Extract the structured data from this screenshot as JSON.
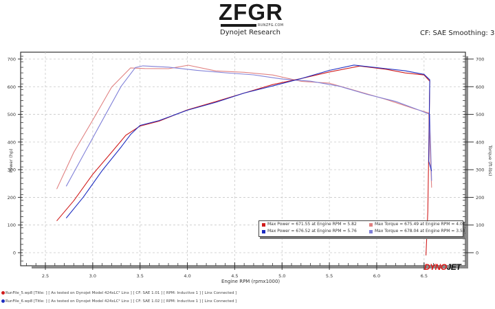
{
  "header": {
    "logo_text": "ZFGR",
    "logo_subtext": "RUNZFG.COM",
    "subtitle": "Dynojet Research",
    "cf_smoothing": "CF: SAE Smoothing: 3"
  },
  "branding": {
    "dynojet_red": "DYNO",
    "dynojet_black": "JET"
  },
  "legend": {
    "rows": [
      [
        {
          "color": "#d01c1c",
          "text": "Max Power = 671.55 at Engine RPM = 5.82"
        },
        {
          "color": "#e08080",
          "text": "Max Torque = 675.49 at Engine RPM = 4.01"
        }
      ],
      [
        {
          "color": "#1c2cc0",
          "text": "Max Power = 676.52 at Engine RPM = 5.76"
        },
        {
          "color": "#8080d8",
          "text": "Max Torque = 678.04 at Engine RPM = 3.53"
        }
      ]
    ]
  },
  "footer": {
    "runs": [
      {
        "color": "#d01c1c",
        "text": "RunFile_5.wp8 [Title: ]   [ As tested on Dynojet Model 424xLC² Linx ] [ CF: SAE 1.01 ] [ RPM: Inductive 1 ] [ Linx Connected ]"
      },
      {
        "color": "#1c2cc0",
        "text": "RunFile_6.wp8 [Title: ]   [ As tested on Dynojet Model 424xLC² Linx ] [ CF: SAE 1.02 ] [ RPM: Inductive 1 ] [ Linx Connected ]"
      }
    ]
  },
  "chart_data": {
    "type": "line",
    "title": "Dynojet Research",
    "subtitle": "CF: SAE Smoothing: 3",
    "xlabel": "Engine RPM (rpmx1000)",
    "ylabel": "Power (hp)",
    "ylabel_right": "Torque (ft-lbs)",
    "xlim": [
      2.3,
      6.6
    ],
    "ylim": [
      -50,
      730
    ],
    "x_ticks": [
      "2.5",
      "3.0",
      "3.5",
      "4.0",
      "4.5",
      "5.0",
      "5.5",
      "6.0",
      "6.5"
    ],
    "y_ticks": [
      "0",
      "100",
      "200",
      "300",
      "400",
      "500",
      "600",
      "700"
    ],
    "y_ticks_right": [
      "0",
      "100",
      "200",
      "300",
      "400",
      "500",
      "600",
      "700"
    ],
    "grid": true,
    "legend_position": "lower right inside plot",
    "series": [
      {
        "name": "Power - RunFile_5",
        "color": "#d01c1c",
        "x": [
          2.62,
          2.8,
          3.0,
          3.2,
          3.35,
          3.5,
          3.7,
          4.0,
          4.3,
          4.6,
          4.9,
          5.2,
          5.5,
          5.82,
          6.1,
          6.3,
          6.5,
          6.56,
          6.54,
          6.52
        ],
        "y": [
          115,
          190,
          280,
          365,
          425,
          455,
          478,
          515,
          545,
          580,
          605,
          630,
          655,
          671.55,
          665,
          650,
          640,
          620,
          150,
          -10
        ]
      },
      {
        "name": "Power - RunFile_6",
        "color": "#1c2cc0",
        "x": [
          2.72,
          2.9,
          3.1,
          3.3,
          3.4,
          3.5,
          3.7,
          4.0,
          4.3,
          4.6,
          4.9,
          5.2,
          5.5,
          5.76,
          6.1,
          6.3,
          6.5,
          6.56,
          6.55,
          6.58
        ],
        "y": [
          125,
          200,
          295,
          385,
          425,
          460,
          480,
          512,
          545,
          578,
          600,
          632,
          658,
          676.52,
          668,
          655,
          645,
          625,
          330,
          295
        ]
      },
      {
        "name": "Torque - RunFile_5",
        "color": "#e08080",
        "x": [
          2.62,
          2.8,
          3.0,
          3.2,
          3.4,
          3.55,
          3.8,
          4.01,
          4.3,
          4.6,
          4.9,
          5.2,
          5.5,
          5.8,
          6.1,
          6.4,
          6.55,
          6.58
        ],
        "y": [
          230,
          360,
          480,
          600,
          665,
          668,
          665,
          675.49,
          660,
          650,
          642,
          622,
          610,
          585,
          555,
          520,
          505,
          235
        ]
      },
      {
        "name": "Torque - RunFile_6",
        "color": "#8080d8",
        "x": [
          2.72,
          2.9,
          3.1,
          3.3,
          3.45,
          3.53,
          3.8,
          4.1,
          4.4,
          4.7,
          5.0,
          5.3,
          5.6,
          5.9,
          6.2,
          6.45,
          6.56,
          6.58
        ],
        "y": [
          240,
          350,
          480,
          600,
          668,
          678.04,
          668,
          660,
          652,
          640,
          630,
          620,
          600,
          575,
          545,
          515,
          500,
          260
        ]
      }
    ]
  }
}
